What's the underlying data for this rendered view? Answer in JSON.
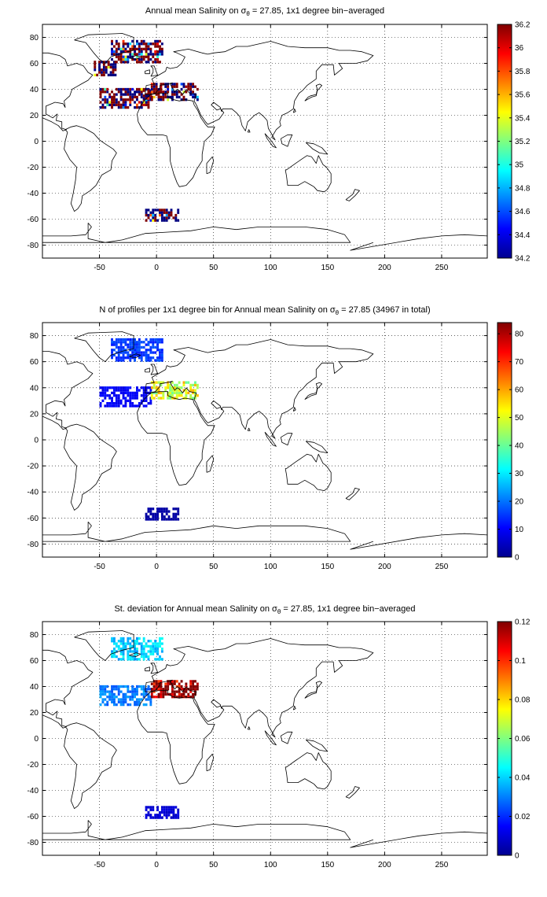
{
  "figure": {
    "panels": [
      {
        "title_pre": "Annual mean Salinity on ",
        "title_sym": "σ",
        "title_sub": "θ",
        "title_post": " = 27.85, 1x1 degree bin−averaged",
        "colorbar": {
          "min": 34.2,
          "max": 36.2,
          "ticks": [
            "34.2",
            "34.4",
            "34.6",
            "34.8",
            "35",
            "35.2",
            "35.4",
            "35.6",
            "35.8",
            "36",
            "36.2"
          ]
        }
      },
      {
        "title_pre": "N of profiles per 1x1 degree bin for Annual mean Salinity on ",
        "title_sym": "σ",
        "title_sub": "θ",
        "title_post": " = 27.85 (34967 in total)",
        "colorbar": {
          "min": 0,
          "max": 84,
          "ticks": [
            "0",
            "10",
            "20",
            "30",
            "40",
            "50",
            "60",
            "70",
            "80"
          ]
        }
      },
      {
        "title_pre": "St. deviation for Annual mean Salinity on ",
        "title_sym": "σ",
        "title_sub": "θ",
        "title_post": " = 27.85, 1x1 degree bin−averaged",
        "colorbar": {
          "min": 0,
          "max": 0.12,
          "ticks": [
            "0",
            "0.02",
            "0.04",
            "0.06",
            "0.08",
            "0.1",
            "0.12"
          ]
        }
      }
    ]
  },
  "chart_data": [
    {
      "type": "heatmap",
      "title": "Annual mean Salinity on σθ = 27.85, 1x1 degree bin−averaged",
      "x_ticks": [
        "-50",
        "0",
        "50",
        "100",
        "150",
        "200",
        "250"
      ],
      "y_ticks": [
        "80",
        "60",
        "40",
        "20",
        "0",
        "-20",
        "-40",
        "-60",
        "-80"
      ],
      "xlim": [
        -100,
        290
      ],
      "ylim": [
        -90,
        90
      ],
      "grid": true,
      "colormap": "jet",
      "clim": [
        34.2,
        36.2
      ],
      "regions": [
        {
          "x": [
            -40,
            5
          ],
          "y": [
            60,
            78
          ],
          "value": 34.95
        },
        {
          "x": [
            -55,
            -35
          ],
          "y": [
            50,
            62
          ],
          "value": 34.9
        },
        {
          "x": [
            -50,
            -5
          ],
          "y": [
            25,
            40
          ],
          "value": 35.1
        },
        {
          "x": [
            -12,
            -5
          ],
          "y": [
            32,
            40
          ],
          "value": 35.7
        },
        {
          "x": [
            -5,
            36
          ],
          "y": [
            31,
            44
          ],
          "value": 36.2
        },
        {
          "x": [
            -10,
            20
          ],
          "y": [
            -62,
            -52
          ],
          "value": 34.7
        }
      ]
    },
    {
      "type": "heatmap",
      "title": "N of profiles per 1x1 degree bin for Annual mean Salinity on σθ = 27.85 (34967 in total)",
      "x_ticks": [
        "-50",
        "0",
        "50",
        "100",
        "150",
        "200",
        "250"
      ],
      "y_ticks": [
        "80",
        "60",
        "40",
        "20",
        "0",
        "-20",
        "-40",
        "-60",
        "-80"
      ],
      "xlim": [
        -100,
        290
      ],
      "ylim": [
        -90,
        90
      ],
      "grid": true,
      "colormap": "jet",
      "clim": [
        0,
        84
      ],
      "total_profiles": 34967,
      "regions": [
        {
          "x": [
            -40,
            5
          ],
          "y": [
            60,
            78
          ],
          "value": 15
        },
        {
          "x": [
            -50,
            -5
          ],
          "y": [
            25,
            40
          ],
          "value": 10
        },
        {
          "x": [
            -5,
            36
          ],
          "y": [
            31,
            44
          ],
          "value": 50
        },
        {
          "x": [
            -10,
            20
          ],
          "y": [
            -62,
            -52
          ],
          "value": 3
        }
      ]
    },
    {
      "type": "heatmap",
      "title": "St. deviation for Annual mean Salinity on σθ = 27.85, 1x1 degree bin−averaged",
      "x_ticks": [
        "-50",
        "0",
        "50",
        "100",
        "150",
        "200",
        "250"
      ],
      "y_ticks": [
        "80",
        "60",
        "40",
        "20",
        "0",
        "-20",
        "-40",
        "-60",
        "-80"
      ],
      "xlim": [
        -100,
        290
      ],
      "ylim": [
        -90,
        90
      ],
      "grid": true,
      "colormap": "jet",
      "clim": [
        0,
        0.12
      ],
      "regions": [
        {
          "x": [
            -40,
            5
          ],
          "y": [
            60,
            78
          ],
          "value": 0.04
        },
        {
          "x": [
            -50,
            -5
          ],
          "y": [
            25,
            40
          ],
          "value": 0.03
        },
        {
          "x": [
            -5,
            36
          ],
          "y": [
            31,
            44
          ],
          "value": 0.12
        },
        {
          "x": [
            -10,
            20
          ],
          "y": [
            -62,
            -52
          ],
          "value": 0.01
        }
      ]
    }
  ]
}
